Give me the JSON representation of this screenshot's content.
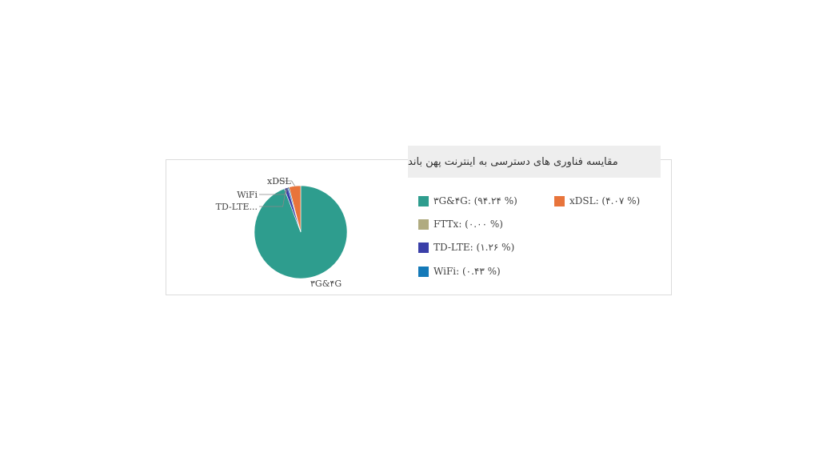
{
  "chart_data": {
    "type": "pie",
    "title": "مقایسه  فناوری های دسترسی  به اینترنت پهن باند",
    "slices": [
      {
        "label": "۳G&۴G",
        "value": 94.24,
        "color": "#2e9d8e",
        "legend": "۳G&۴G: (۹۴.۲۴ %)"
      },
      {
        "label": "xDSL",
        "value": 4.07,
        "color": "#e8743b",
        "legend": "xDSL: (۴.۰۷ %)"
      },
      {
        "label": "FTTx",
        "value": 0.0,
        "color": "#b0ab80",
        "legend": "FTTx: (۰.۰۰ %)"
      },
      {
        "label": "TD-LTE...",
        "value": 1.26,
        "color": "#3a3fa8",
        "legend": "TD-LTE: (۱.۲۶ %)"
      },
      {
        "label": "WiFi",
        "value": 0.43,
        "color": "#1479b8",
        "legend": "WiFi: (۰.۴۳ %)"
      }
    ],
    "legend_position": "right"
  }
}
